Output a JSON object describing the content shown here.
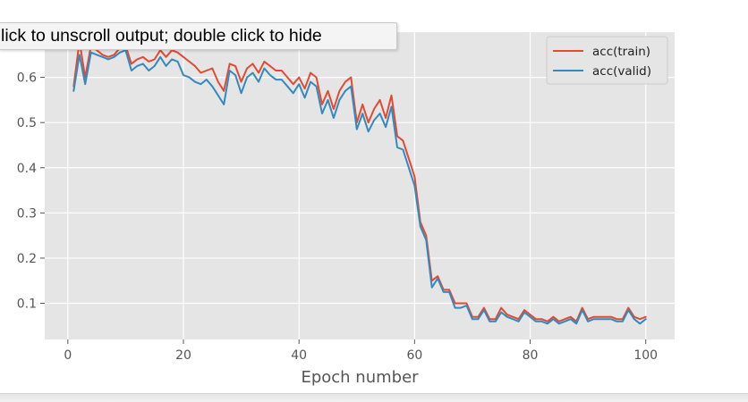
{
  "output_hint": "lick to unscroll output; double click to hide",
  "chart_data": {
    "type": "line",
    "title": "",
    "xlabel": "Epoch number",
    "ylabel": "",
    "xlim": [
      -4,
      105
    ],
    "ylim": [
      0.02,
      0.7
    ],
    "xticks": [
      0,
      20,
      40,
      60,
      80,
      100
    ],
    "yticks": [
      0.1,
      0.2,
      0.3,
      0.4,
      0.5,
      0.6
    ],
    "grid": true,
    "legend_position": "top-right",
    "x": [
      1,
      2,
      3,
      4,
      5,
      6,
      7,
      8,
      9,
      10,
      11,
      12,
      13,
      14,
      15,
      16,
      17,
      18,
      19,
      20,
      21,
      22,
      23,
      24,
      25,
      26,
      27,
      28,
      29,
      30,
      31,
      32,
      33,
      34,
      35,
      36,
      37,
      38,
      39,
      40,
      41,
      42,
      43,
      44,
      45,
      46,
      47,
      48,
      49,
      50,
      51,
      52,
      53,
      54,
      55,
      56,
      57,
      58,
      59,
      60,
      61,
      62,
      63,
      64,
      65,
      66,
      67,
      68,
      69,
      70,
      71,
      72,
      73,
      74,
      75,
      76,
      77,
      78,
      79,
      80,
      81,
      82,
      83,
      84,
      85,
      86,
      87,
      88,
      89,
      90,
      91,
      92,
      93,
      94,
      95,
      96,
      97,
      98,
      99,
      100
    ],
    "series": [
      {
        "name": "acc(train)",
        "color": "#e24a33",
        "values": [
          0.58,
          0.68,
          0.6,
          0.67,
          0.66,
          0.65,
          0.645,
          0.65,
          0.665,
          0.67,
          0.63,
          0.64,
          0.645,
          0.635,
          0.64,
          0.66,
          0.645,
          0.66,
          0.655,
          0.645,
          0.635,
          0.625,
          0.61,
          0.615,
          0.62,
          0.59,
          0.57,
          0.63,
          0.625,
          0.59,
          0.62,
          0.63,
          0.61,
          0.635,
          0.625,
          0.615,
          0.615,
          0.6,
          0.585,
          0.6,
          0.575,
          0.61,
          0.6,
          0.54,
          0.57,
          0.53,
          0.57,
          0.59,
          0.6,
          0.5,
          0.54,
          0.5,
          0.53,
          0.55,
          0.51,
          0.56,
          0.47,
          0.46,
          0.42,
          0.38,
          0.28,
          0.25,
          0.15,
          0.16,
          0.13,
          0.13,
          0.1,
          0.1,
          0.1,
          0.07,
          0.07,
          0.09,
          0.065,
          0.065,
          0.09,
          0.075,
          0.07,
          0.065,
          0.085,
          0.075,
          0.065,
          0.065,
          0.06,
          0.07,
          0.06,
          0.065,
          0.07,
          0.06,
          0.09,
          0.065,
          0.07,
          0.07,
          0.07,
          0.07,
          0.065,
          0.065,
          0.09,
          0.07,
          0.065,
          0.07
        ]
      },
      {
        "name": "acc(valid)",
        "color": "#348abd",
        "values": [
          0.57,
          0.65,
          0.585,
          0.655,
          0.65,
          0.645,
          0.64,
          0.645,
          0.655,
          0.66,
          0.615,
          0.625,
          0.63,
          0.615,
          0.625,
          0.645,
          0.625,
          0.64,
          0.635,
          0.605,
          0.6,
          0.59,
          0.585,
          0.595,
          0.58,
          0.56,
          0.54,
          0.615,
          0.605,
          0.565,
          0.6,
          0.61,
          0.59,
          0.62,
          0.605,
          0.595,
          0.595,
          0.58,
          0.565,
          0.585,
          0.555,
          0.59,
          0.58,
          0.52,
          0.55,
          0.51,
          0.55,
          0.57,
          0.58,
          0.485,
          0.52,
          0.48,
          0.505,
          0.52,
          0.49,
          0.535,
          0.445,
          0.44,
          0.4,
          0.36,
          0.27,
          0.24,
          0.135,
          0.155,
          0.125,
          0.125,
          0.09,
          0.09,
          0.095,
          0.065,
          0.065,
          0.085,
          0.06,
          0.06,
          0.08,
          0.07,
          0.065,
          0.06,
          0.08,
          0.07,
          0.06,
          0.06,
          0.055,
          0.065,
          0.055,
          0.06,
          0.065,
          0.055,
          0.085,
          0.06,
          0.065,
          0.065,
          0.065,
          0.065,
          0.06,
          0.06,
          0.085,
          0.065,
          0.055,
          0.065
        ]
      }
    ]
  }
}
